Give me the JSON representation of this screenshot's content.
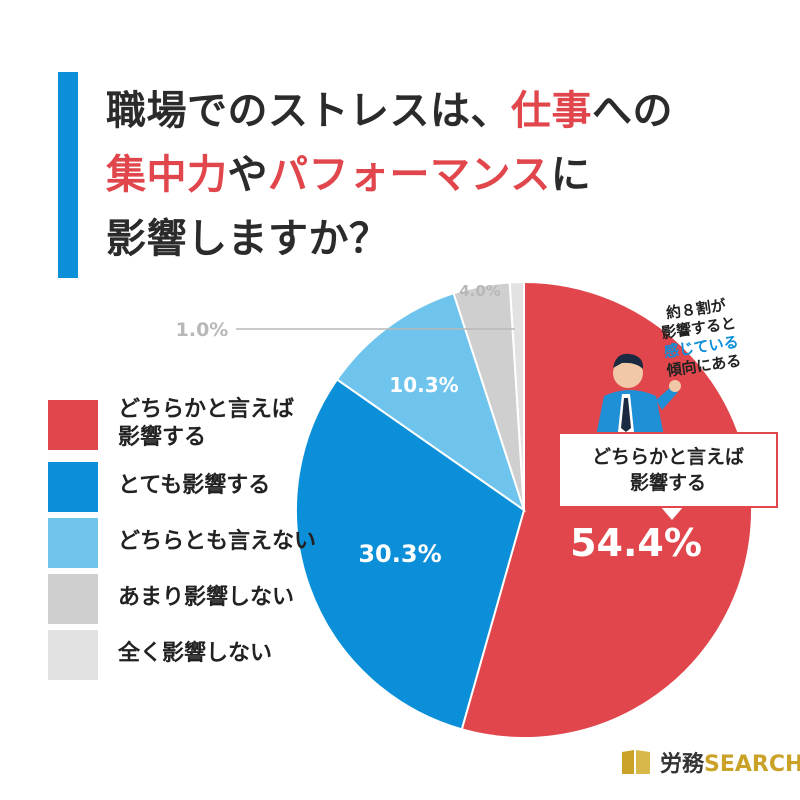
{
  "title": {
    "line1_a": "職場でのストレスは、",
    "line1_b": "仕事",
    "line1_c": "への",
    "line2_a": "集中力",
    "line2_b": "や",
    "line2_c": "パフォーマンス",
    "line2_d": "に",
    "line3": "影響しますか？"
  },
  "colors": {
    "accent_red": "#e0464b",
    "blue": "#0b8fd8",
    "light_blue": "#6ec4ec",
    "gray": "#cfcfcf",
    "light_gray": "#e2e2e2",
    "title_bar": "#0b8fd8"
  },
  "legend": [
    {
      "label_line1": "どちらかと言えば",
      "label_line2": "影響する",
      "color": "#e0464b"
    },
    {
      "label_line1": "とても影響する",
      "label_line2": "",
      "color": "#0b8fd8"
    },
    {
      "label_line1": "どちらとも言えない",
      "label_line2": "",
      "color": "#6ec4ec"
    },
    {
      "label_line1": "あまり影響しない",
      "label_line2": "",
      "color": "#cfcfcf"
    },
    {
      "label_line1": "全く影響しない",
      "label_line2": "",
      "color": "#e2e2e2"
    }
  ],
  "chart_data": {
    "type": "pie",
    "categories": [
      "どちらかと言えば影響する",
      "とても影響する",
      "どちらとも言えない",
      "あまり影響しない",
      "全く影響しない"
    ],
    "values": [
      54.4,
      30.3,
      10.3,
      4.0,
      1.0
    ],
    "labels": [
      "54.4%",
      "30.3%",
      "10.3%",
      "4.0%",
      "1.0%"
    ],
    "colors": [
      "#e0464b",
      "#0b8fd8",
      "#6ec4ec",
      "#cfcfcf",
      "#e2e2e2"
    ],
    "start": "12 o'clock, clockwise"
  },
  "callout": {
    "line1": "どちらかと言えば",
    "line2": "影響する"
  },
  "note": {
    "line1": "約８割が",
    "line2": "影響すると",
    "line3": "感じている",
    "line4": "傾向にある"
  },
  "logo": {
    "text_a": "労務",
    "text_b": "SEARCH",
    "icon": "book-icon"
  }
}
